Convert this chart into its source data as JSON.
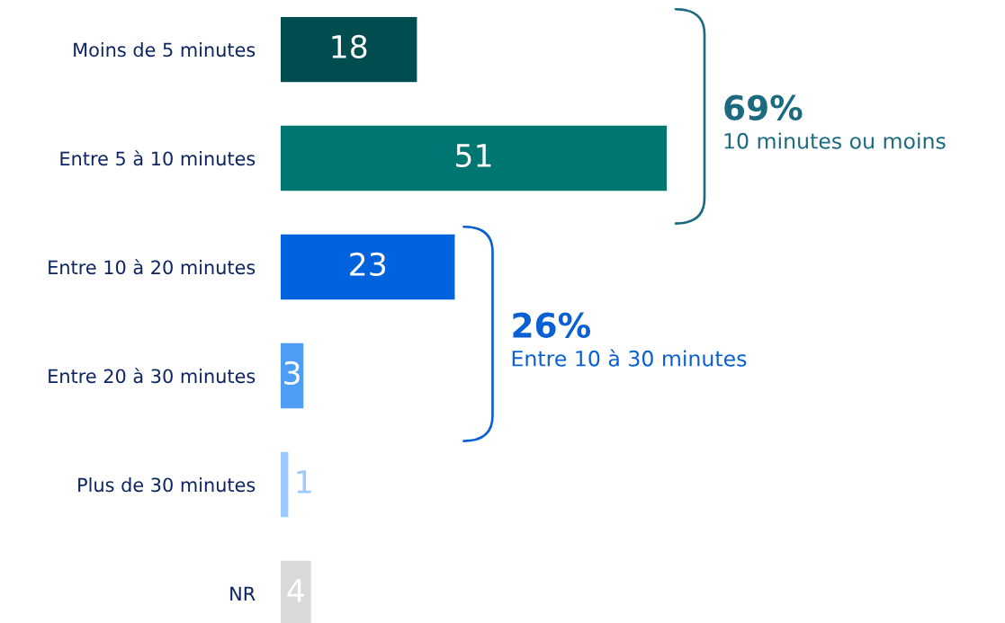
{
  "chart_data": {
    "type": "bar",
    "orientation": "horizontal",
    "categories": [
      "Moins de 5 minutes",
      "Entre 5 à 10 minutes",
      "Entre 10 à 20 minutes",
      "Entre 20 à 30 minutes",
      "Plus de 30 minutes",
      "NR"
    ],
    "values": [
      18,
      51,
      23,
      3,
      1,
      4
    ],
    "colors": [
      "#004d4f",
      "#007672",
      "#0062dc",
      "#4d9cf5",
      "#9ccaff",
      "#d9d9d9"
    ],
    "data_labels": true,
    "tick_labels": "y",
    "annotations": [
      "69%",
      "10 minutes ou moins",
      "26%",
      "Entre 10 à 30 minutes"
    ]
  }
}
